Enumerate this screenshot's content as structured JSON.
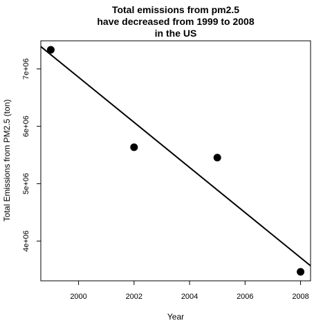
{
  "chart_data": {
    "type": "scatter",
    "title_lines": [
      "Total emissions from pm2.5",
      "have decreased from 1999 to 2008",
      "in the US"
    ],
    "xlabel": "Year",
    "ylabel": "Total Emissions from PM2.5 (ton)",
    "x": [
      1999,
      2002,
      2005,
      2008
    ],
    "y": [
      7332967,
      5635780,
      5454703,
      3464206
    ],
    "xlim": [
      1998.64,
      2008.36
    ],
    "ylim": [
      3308000,
      7490000
    ],
    "x_ticks": [
      2000,
      2002,
      2004,
      2006,
      2008
    ],
    "x_tick_labels": [
      "2000",
      "2002",
      "2004",
      "2006",
      "2008"
    ],
    "y_ticks": [
      4000000,
      5000000,
      6000000,
      7000000
    ],
    "y_tick_labels": [
      "4e+06",
      "5e+06",
      "6e+06",
      "7e+06"
    ],
    "regression_line": {
      "x": [
        1998.64,
        2008.36
      ],
      "y": [
        7390000,
        3570000
      ]
    },
    "grid": false,
    "legend": "none",
    "point_color": "#000000",
    "line_color": "#000000"
  }
}
